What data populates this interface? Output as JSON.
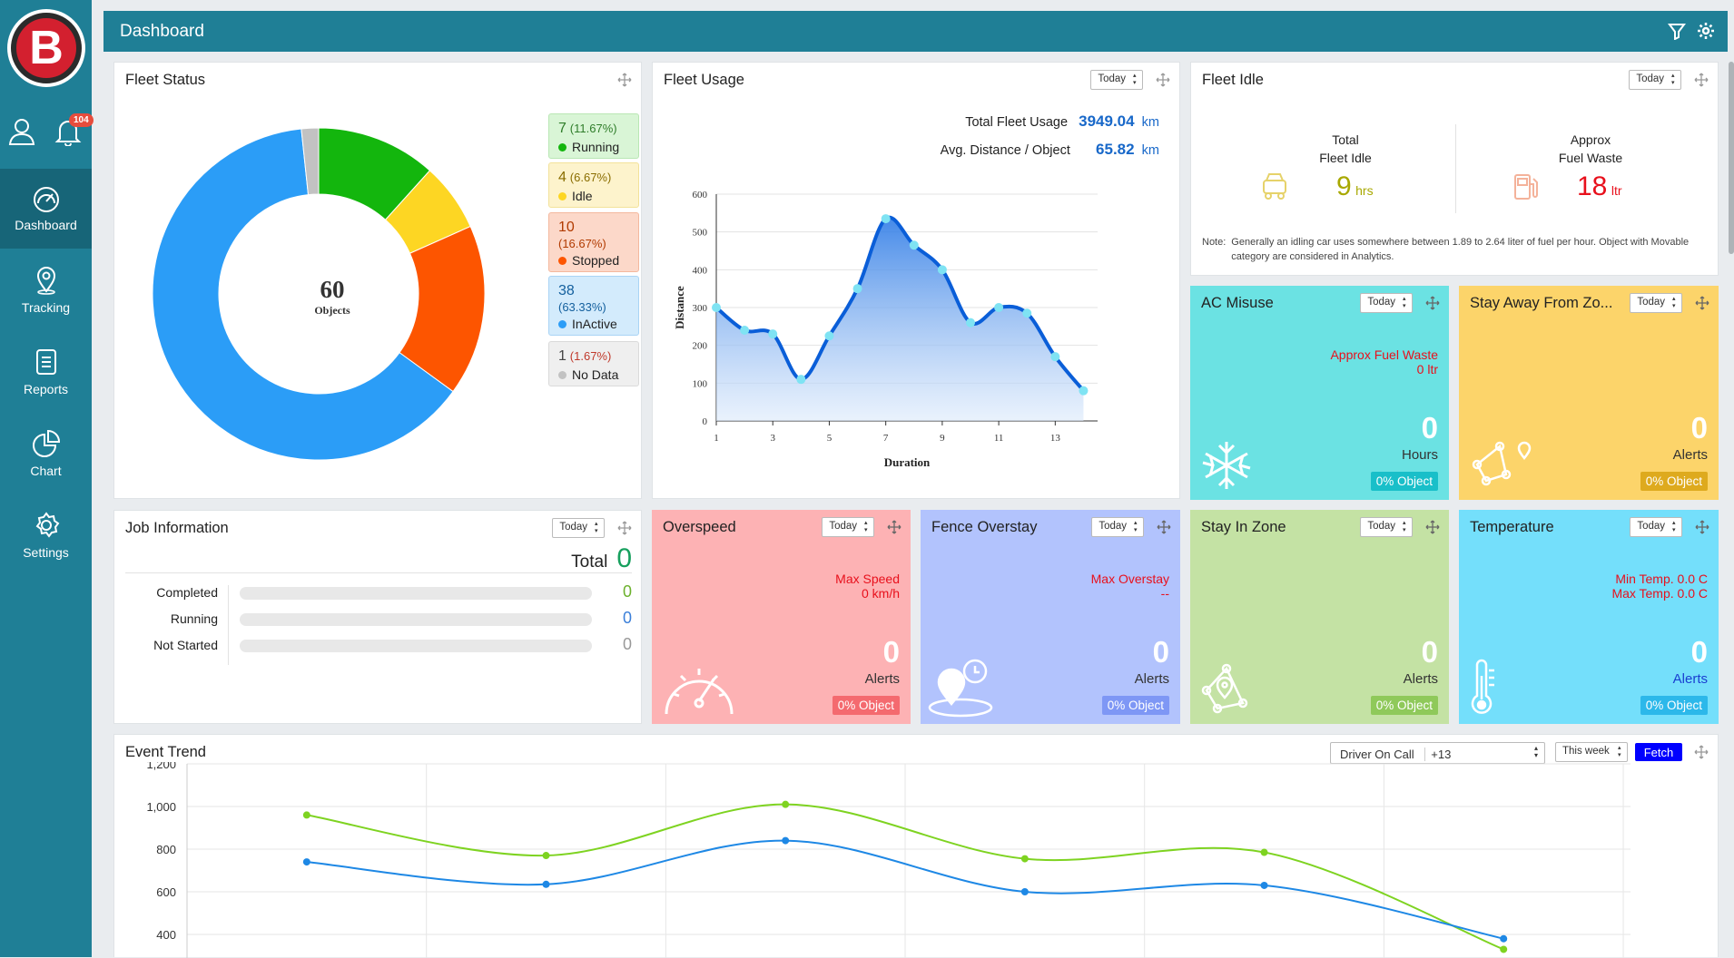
{
  "app": {
    "logo_letter": "B",
    "notification_count": "104"
  },
  "nav": [
    {
      "label": "Dashboard",
      "icon": "dashboard-icon",
      "active": true
    },
    {
      "label": "Tracking",
      "icon": "location-pin-icon"
    },
    {
      "label": "Reports",
      "icon": "report-icon"
    },
    {
      "label": "Chart",
      "icon": "pie-chart-icon"
    },
    {
      "label": "Settings",
      "icon": "gear-icon"
    }
  ],
  "header": {
    "title": "Dashboard"
  },
  "fleet_status": {
    "title": "Fleet Status",
    "total": "60",
    "total_label": "Objects",
    "segments": [
      {
        "name": "Running",
        "count": 7,
        "pct": "(11.67%)",
        "color": "#13b60d"
      },
      {
        "name": "Idle",
        "count": 4,
        "pct": "(6.67%)",
        "color": "#fdd623"
      },
      {
        "name": "Stopped",
        "count": 10,
        "pct": "(16.67%)",
        "color": "#fd5500"
      },
      {
        "name": "InActive",
        "count": 38,
        "pct": "(63.33%)",
        "color": "#2b9df7"
      },
      {
        "name": "No Data",
        "count": 1,
        "pct": "(1.67%)",
        "color": "#c2c2c2"
      }
    ],
    "legend": [
      {
        "count": "7",
        "pct": "(11.67%)",
        "name": "Running",
        "bg": "#d9f5d6",
        "border": "#b9e7b4",
        "numcolor": "#2f7d2a",
        "pctcolor": "#2f7d2a"
      },
      {
        "count": "4",
        "pct": "(6.67%)",
        "name": "Idle",
        "bg": "#fdf3cc",
        "border": "#f3e29a",
        "numcolor": "#8a6d00",
        "pctcolor": "#8a6d00"
      },
      {
        "count": "10",
        "pct": "(16.67%)",
        "name": "Stopped",
        "bg": "#fcd8c9",
        "border": "#f4b89e",
        "numcolor": "#b13a00",
        "pctcolor": "#b13a00"
      },
      {
        "count": "38",
        "pct": "(63.33%)",
        "name": "InActive",
        "bg": "#d3ebfc",
        "border": "#a9d4f5",
        "numcolor": "#14609e",
        "pctcolor": "#14609e"
      },
      {
        "count": "1",
        "pct": "(1.67%)",
        "name": "No Data",
        "bg": "#efefef",
        "border": "#dadada",
        "numcolor": "#444",
        "pctcolor": "#c0392b"
      }
    ]
  },
  "fleet_usage": {
    "title": "Fleet Usage",
    "filter": "Today",
    "total_label": "Total Fleet Usage",
    "total_value": "3949.04",
    "total_unit": "km",
    "avg_label": "Avg. Distance / Object",
    "avg_value": "65.82",
    "avg_unit": "km"
  },
  "fleet_idle": {
    "title": "Fleet Idle",
    "filter": "Today",
    "total_label1": "Total",
    "total_label2": "Fleet Idle",
    "total_value": "9",
    "total_unit": "hrs",
    "fuel_label1": "Approx",
    "fuel_label2": "Fuel Waste",
    "fuel_value": "18",
    "fuel_unit": "ltr",
    "note_label": "Note:",
    "note": "Generally an idling car uses somewhere between 1.89 to 2.64 liter of fuel per hour. Object with Movable category are considered in Analytics."
  },
  "ac_misuse": {
    "title": "AC Misuse",
    "filter": "Today",
    "metric1": "Approx Fuel Waste",
    "metric2": "0 ltr",
    "value": "0",
    "unit": "Hours",
    "badge": "0% Object"
  },
  "stay_away": {
    "title": "Stay Away From Zo...",
    "filter": "Today",
    "value": "0",
    "unit": "Alerts",
    "badge": "0% Object"
  },
  "job_info": {
    "title": "Job Information",
    "filter": "Today",
    "total_label": "Total",
    "total_value": "0",
    "rows": [
      {
        "label": "Completed",
        "value": "0",
        "color": "#6cb12d"
      },
      {
        "label": "Running",
        "value": "0",
        "color": "#3b7fd9"
      },
      {
        "label": "Not Started",
        "value": "0",
        "color": "#999"
      }
    ]
  },
  "overspeed": {
    "title": "Overspeed",
    "filter": "Today",
    "metric1": "Max Speed",
    "metric2": "0 km/h",
    "value": "0",
    "unit": "Alerts",
    "badge": "0% Object"
  },
  "fence_overstay": {
    "title": "Fence Overstay",
    "filter": "Today",
    "metric1": "Max Overstay",
    "metric2": "--",
    "value": "0",
    "unit": "Alerts",
    "badge": "0% Object"
  },
  "stay_in_zone": {
    "title": "Stay In Zone",
    "filter": "Today",
    "value": "0",
    "unit": "Alerts",
    "badge": "0% Object"
  },
  "temperature": {
    "title": "Temperature",
    "filter": "Today",
    "metric1": "Min Temp. 0.0 C",
    "metric2": "Max Temp. 0.0 C",
    "value": "0",
    "unit": "Alerts",
    "badge": "0% Object"
  },
  "event_trend": {
    "title": "Event Trend",
    "event_select": "Driver On Call",
    "event_more": "+13",
    "filter": "This week",
    "fetch": "Fetch"
  },
  "chart_data": [
    {
      "type": "area",
      "x": [
        1,
        2,
        3,
        4,
        5,
        6,
        7,
        8,
        9,
        10,
        11,
        12,
        13,
        14
      ],
      "values": [
        300,
        240,
        230,
        110,
        225,
        350,
        535,
        465,
        400,
        260,
        300,
        285,
        170,
        80
      ],
      "xlabel": "Duration",
      "ylabel": "Distance",
      "ylim": [
        0,
        600
      ],
      "yticks": [
        0,
        100,
        200,
        300,
        400,
        500,
        600
      ],
      "xticks": [
        1,
        3,
        5,
        7,
        9,
        11,
        13
      ],
      "grid": true
    },
    {
      "type": "line",
      "ylim": [
        400,
        1200
      ],
      "yticks": [
        "400",
        "600",
        "800",
        "1,000",
        "1,200"
      ],
      "series": [
        {
          "color": "#7ed321",
          "values": [
            960,
            770,
            1010,
            755,
            785,
            330
          ]
        },
        {
          "color": "#1e88e5",
          "values": [
            740,
            635,
            840,
            600,
            630,
            380
          ]
        }
      ],
      "grid": true
    }
  ]
}
